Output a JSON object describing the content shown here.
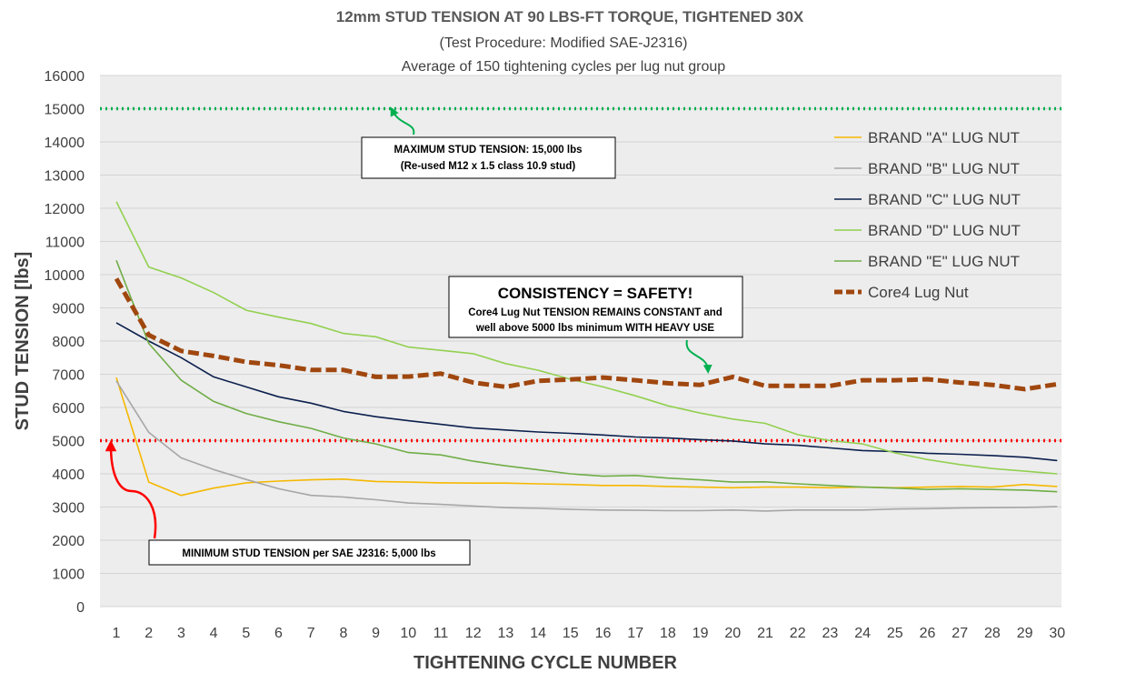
{
  "chart_data": {
    "type": "line",
    "title": "12mm STUD TENSION AT 90 LBS-FT TORQUE, TIGHTENED 30X",
    "subtitle": "(Test Procedure: Modified SAE-J2316)",
    "subtitle2": "Average of 150 tightening cycles per lug nut group",
    "xlabel": "TIGHTENING CYCLE NUMBER",
    "ylabel": "STUD TENSION [lbs]",
    "ylim": [
      0,
      16000
    ],
    "yticks": [
      "0",
      "1000",
      "2000",
      "3000",
      "4000",
      "5000",
      "6000",
      "7000",
      "8000",
      "9000",
      "10000",
      "11000",
      "12000",
      "13000",
      "14000",
      "15000",
      "16000"
    ],
    "x": [
      "1",
      "2",
      "3",
      "4",
      "5",
      "6",
      "7",
      "8",
      "9",
      "10",
      "11",
      "12",
      "13",
      "14",
      "15",
      "16",
      "17",
      "18",
      "19",
      "20",
      "21",
      "22",
      "23",
      "24",
      "25",
      "26",
      "27",
      "28",
      "29",
      "30"
    ],
    "grid": "horizontal",
    "legend_position": "right",
    "series": [
      {
        "name": "BRAND \"A\" LUG NUT",
        "color": "#f5b800",
        "style": "solid",
        "values": [
          6900,
          3750,
          3350,
          3570,
          3730,
          3780,
          3820,
          3840,
          3770,
          3750,
          3730,
          3720,
          3720,
          3700,
          3680,
          3650,
          3650,
          3620,
          3600,
          3580,
          3600,
          3600,
          3580,
          3600,
          3580,
          3600,
          3620,
          3600,
          3680,
          3620
        ]
      },
      {
        "name": "BRAND \"B\" LUG NUT",
        "color": "#a6a6a6",
        "style": "solid",
        "values": [
          6800,
          5250,
          4480,
          4130,
          3830,
          3550,
          3350,
          3300,
          3220,
          3120,
          3080,
          3030,
          2980,
          2960,
          2930,
          2910,
          2900,
          2890,
          2890,
          2910,
          2880,
          2910,
          2910,
          2910,
          2940,
          2950,
          2970,
          2980,
          2990,
          3010
        ]
      },
      {
        "name": "BRAND \"C\" LUG NUT",
        "color": "#0b1f4d",
        "style": "solid",
        "values": [
          8550,
          8000,
          7500,
          6920,
          6620,
          6320,
          6130,
          5880,
          5720,
          5600,
          5490,
          5380,
          5320,
          5260,
          5220,
          5170,
          5110,
          5080,
          5030,
          4990,
          4900,
          4860,
          4780,
          4700,
          4670,
          4620,
          4590,
          4550,
          4500,
          4400
        ]
      },
      {
        "name": "BRAND \"D\" LUG NUT",
        "color": "#92d050",
        "style": "solid",
        "values": [
          12200,
          10230,
          9900,
          9460,
          8930,
          8720,
          8530,
          8230,
          8130,
          7820,
          7720,
          7620,
          7320,
          7120,
          6850,
          6620,
          6350,
          6050,
          5830,
          5650,
          5520,
          5180,
          5000,
          4900,
          4630,
          4430,
          4280,
          4160,
          4080,
          4000
        ]
      },
      {
        "name": "BRAND \"E\" LUG NUT",
        "color": "#70ad47",
        "style": "solid",
        "values": [
          10430,
          7930,
          6820,
          6180,
          5820,
          5570,
          5370,
          5080,
          4900,
          4640,
          4570,
          4380,
          4240,
          4120,
          4000,
          3930,
          3950,
          3870,
          3820,
          3750,
          3760,
          3700,
          3650,
          3600,
          3570,
          3530,
          3550,
          3530,
          3510,
          3460
        ]
      },
      {
        "name": "Core4 Lug Nut",
        "color": "#a0470f",
        "style": "dashed",
        "values": [
          9880,
          8180,
          7700,
          7550,
          7370,
          7270,
          7130,
          7130,
          6920,
          6930,
          7020,
          6750,
          6620,
          6800,
          6840,
          6900,
          6820,
          6730,
          6680,
          6920,
          6650,
          6650,
          6650,
          6820,
          6820,
          6850,
          6750,
          6680,
          6550,
          6700
        ]
      }
    ],
    "reference_lines": [
      {
        "name": "maximum",
        "value": 15000,
        "color": "#00b050"
      },
      {
        "name": "minimum",
        "value": 5000,
        "color": "#ff0000"
      }
    ],
    "annotations": {
      "max_note_line1": "MAXIMUM STUD TENSION: 15,000 lbs",
      "max_note_line2": "(Re-used M12 x 1.5 class 10.9 stud)",
      "min_note": "MINIMUM STUD TENSION per SAE J2316: 5,000 lbs",
      "consistency_head": "CONSISTENCY = SAFETY!",
      "consistency_line1": "Core4 Lug Nut TENSION REMAINS CONSTANT and",
      "consistency_line2": "well above 5000 lbs minimum WITH HEAVY USE"
    }
  }
}
